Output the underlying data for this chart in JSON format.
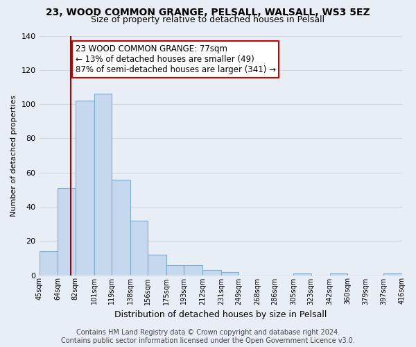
{
  "title": "23, WOOD COMMON GRANGE, PELSALL, WALSALL, WS3 5EZ",
  "subtitle": "Size of property relative to detached houses in Pelsall",
  "xlabel": "Distribution of detached houses by size in Pelsall",
  "ylabel": "Number of detached properties",
  "bar_edges": [
    45,
    64,
    82,
    101,
    119,
    138,
    156,
    175,
    193,
    212,
    231,
    249,
    268,
    286,
    305,
    323,
    342,
    360,
    379,
    397,
    416
  ],
  "bar_heights": [
    14,
    51,
    102,
    106,
    56,
    32,
    12,
    6,
    6,
    3,
    2,
    0,
    0,
    0,
    1,
    0,
    1,
    0,
    0,
    1
  ],
  "bar_color": "#c5d8ed",
  "bar_edge_color": "#7aafd4",
  "property_line_x": 77,
  "property_line_color": "#aa0000",
  "annotation_text": "23 WOOD COMMON GRANGE: 77sqm\n← 13% of detached houses are smaller (49)\n87% of semi-detached houses are larger (341) →",
  "annotation_box_color": "#ffffff",
  "annotation_box_edge_color": "#cc0000",
  "ylim": [
    0,
    140
  ],
  "yticks": [
    0,
    20,
    40,
    60,
    80,
    100,
    120,
    140
  ],
  "tick_labels": [
    "45sqm",
    "64sqm",
    "82sqm",
    "101sqm",
    "119sqm",
    "138sqm",
    "156sqm",
    "175sqm",
    "193sqm",
    "212sqm",
    "231sqm",
    "249sqm",
    "268sqm",
    "286sqm",
    "305sqm",
    "323sqm",
    "342sqm",
    "360sqm",
    "379sqm",
    "397sqm",
    "416sqm"
  ],
  "footer_text": "Contains HM Land Registry data © Crown copyright and database right 2024.\nContains public sector information licensed under the Open Government Licence v3.0.",
  "background_color": "#e8eef5",
  "plot_bg_color": "#e8eef5",
  "grid_color": "#d0d8e4",
  "title_fontsize": 10,
  "subtitle_fontsize": 9,
  "xlabel_fontsize": 9,
  "ylabel_fontsize": 8,
  "annotation_fontsize": 8.5,
  "tick_fontsize": 7,
  "footer_fontsize": 7
}
